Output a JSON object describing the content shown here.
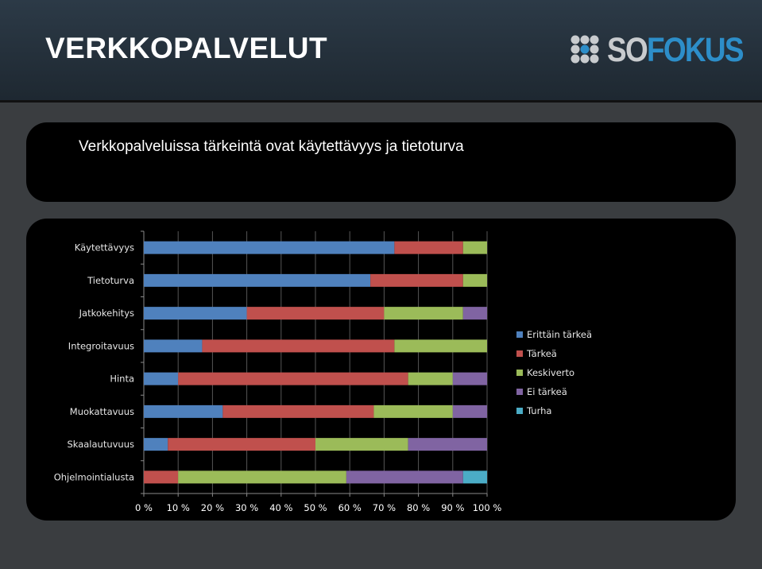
{
  "header": {
    "title": "VERKKOPALVELUT",
    "logo": {
      "text_so": "SO",
      "text_fokus": "FOKUS",
      "icon": "dot-cluster-icon"
    }
  },
  "subtitle": "Verkkopalveluissa tärkeintä ovat käytettävyys ja tietoturva",
  "colors": {
    "erittain_tarkea": "#4f81bd",
    "tarkea": "#c0504d",
    "keskiverto": "#9bbb59",
    "ei_tarkea": "#8064a2",
    "turha": "#4bacc6"
  },
  "chart_data": {
    "type": "bar",
    "orientation": "horizontal",
    "stacked": "percent",
    "categories": [
      "Käytettävyys",
      "Tietoturva",
      "Jatkokehitys",
      "Integroitavuus",
      "Hinta",
      "Muokattavuus",
      "Skaalautuvuus",
      "Ohjelmointialusta"
    ],
    "xlim": [
      0,
      100
    ],
    "x_ticks": [
      "0 %",
      "10 %",
      "20 %",
      "30 %",
      "40 %",
      "50 %",
      "60 %",
      "70 %",
      "80 %",
      "90 %",
      "100 %"
    ],
    "grid": true,
    "legend_position": "right",
    "series": [
      {
        "name": "Erittäin tärkeä",
        "color": "#4f81bd",
        "values": [
          73,
          66,
          30,
          17,
          10,
          23,
          7,
          0
        ]
      },
      {
        "name": "Tärkeä",
        "color": "#c0504d",
        "values": [
          20,
          27,
          40,
          56,
          67,
          44,
          43,
          10
        ]
      },
      {
        "name": "Keskiverto",
        "color": "#9bbb59",
        "values": [
          7,
          7,
          23,
          27,
          13,
          23,
          27,
          49
        ]
      },
      {
        "name": "Ei tärkeä",
        "color": "#8064a2",
        "values": [
          0,
          0,
          7,
          0,
          10,
          10,
          23,
          34
        ]
      },
      {
        "name": "Turha",
        "color": "#4bacc6",
        "values": [
          0,
          0,
          0,
          0,
          0,
          0,
          0,
          7
        ]
      }
    ]
  }
}
